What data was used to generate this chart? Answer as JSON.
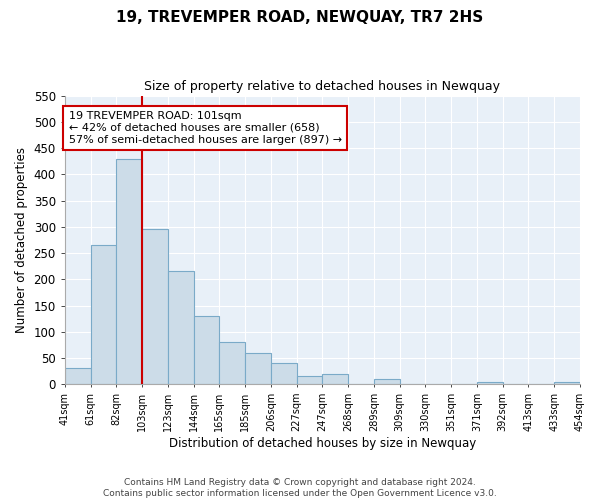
{
  "title": "19, TREVEMPER ROAD, NEWQUAY, TR7 2HS",
  "subtitle": "Size of property relative to detached houses in Newquay",
  "xlabel": "Distribution of detached houses by size in Newquay",
  "ylabel": "Number of detached properties",
  "footer_line1": "Contains HM Land Registry data © Crown copyright and database right 2024.",
  "footer_line2": "Contains public sector information licensed under the Open Government Licence v3.0.",
  "bin_labels": [
    "41sqm",
    "61sqm",
    "82sqm",
    "103sqm",
    "123sqm",
    "144sqm",
    "165sqm",
    "185sqm",
    "206sqm",
    "227sqm",
    "247sqm",
    "268sqm",
    "289sqm",
    "309sqm",
    "330sqm",
    "351sqm",
    "371sqm",
    "392sqm",
    "413sqm",
    "433sqm",
    "454sqm"
  ],
  "bar_heights": [
    32,
    265,
    430,
    295,
    215,
    130,
    80,
    60,
    40,
    15,
    20,
    0,
    10,
    0,
    0,
    0,
    5,
    0,
    0,
    5
  ],
  "bar_color": "#ccdce8",
  "bar_edge_color": "#7aaac8",
  "property_line_color": "#cc0000",
  "annotation_title": "19 TREVEMPER ROAD: 101sqm",
  "annotation_line1": "← 42% of detached houses are smaller (658)",
  "annotation_line2": "57% of semi-detached houses are larger (897) →",
  "annotation_box_color": "#ffffff",
  "annotation_box_edge": "#cc0000",
  "ylim": [
    0,
    550
  ],
  "yticks": [
    0,
    50,
    100,
    150,
    200,
    250,
    300,
    350,
    400,
    450,
    500,
    550
  ],
  "plot_bg_color": "#e8f0f8",
  "figure_bg_color": "#ffffff",
  "grid_color": "#ffffff"
}
